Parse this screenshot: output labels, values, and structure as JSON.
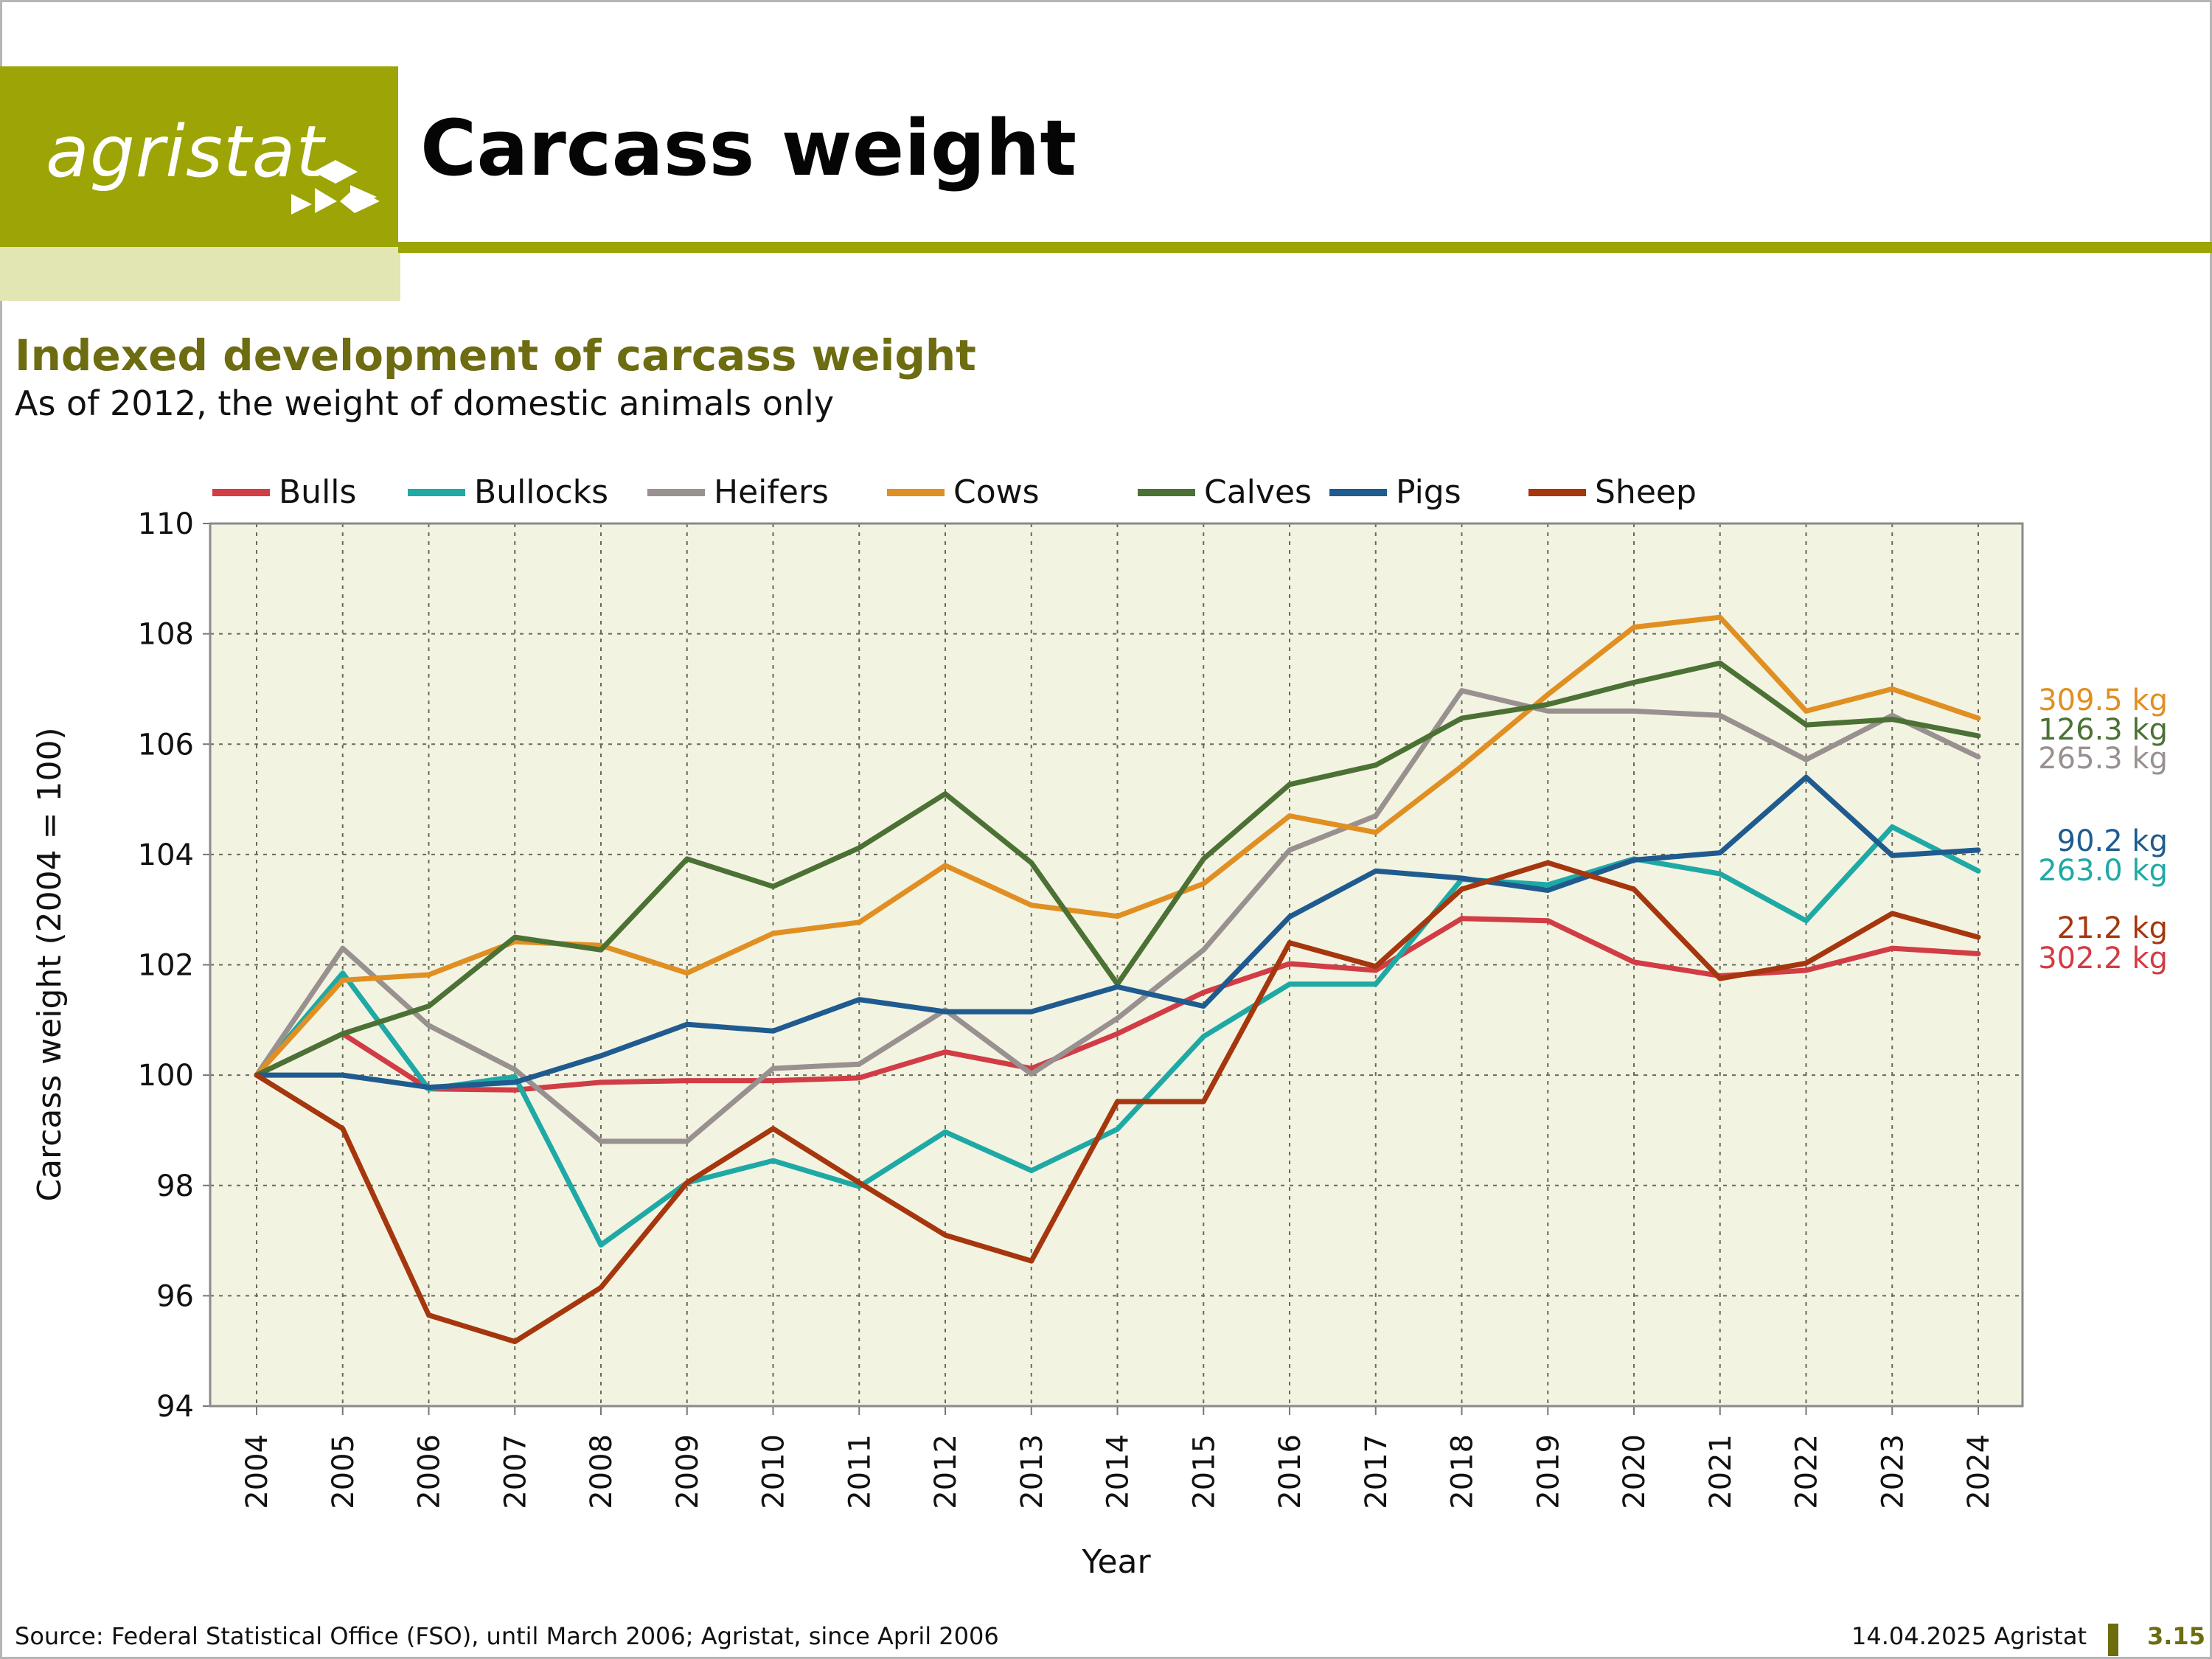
{
  "header": {
    "logo_text": "agristat",
    "title": "Carcass weight"
  },
  "subtitle": "Indexed development of carcass weight",
  "description": "As of 2012, the weight of domestic animals only",
  "colors": {
    "brand": "#9ca406",
    "brand_light": "#e1e6b2",
    "brand_dark": "#6d6c10",
    "plot_bg": "#f3f3e2"
  },
  "chart_data": {
    "type": "line",
    "xlabel": "Year",
    "ylabel": "Carcass weight (2004 = 100)",
    "ylim": [
      94,
      110
    ],
    "yticks": [
      94,
      96,
      98,
      100,
      102,
      104,
      106,
      108,
      110
    ],
    "grid": true,
    "legend_position": "top",
    "x": [
      "2004",
      "2005",
      "2006",
      "2007",
      "2008",
      "2009",
      "2010",
      "2011",
      "2012",
      "2013",
      "2014",
      "2015",
      "2016",
      "2017",
      "2018",
      "2019",
      "2020",
      "2021",
      "2022",
      "2023",
      "2024"
    ],
    "series": [
      {
        "name": "Bulls",
        "color": "#d13c45",
        "end_label": "302.2 kg",
        "values": [
          100,
          100.75,
          99.75,
          99.73,
          99.87,
          99.9,
          99.9,
          99.95,
          100.42,
          100.12,
          100.75,
          101.5,
          102.02,
          101.9,
          102.84,
          102.8,
          102.05,
          101.8,
          101.9,
          102.3,
          102.2
        ]
      },
      {
        "name": "Bullocks",
        "color": "#1fa9a5",
        "end_label": "263.0 kg",
        "values": [
          100,
          101.85,
          99.75,
          99.97,
          96.92,
          98.05,
          98.45,
          97.98,
          98.97,
          98.27,
          99.02,
          100.7,
          101.65,
          101.65,
          103.55,
          103.45,
          103.92,
          103.65,
          102.8,
          104.5,
          103.7
        ]
      },
      {
        "name": "Heifers",
        "color": "#999090",
        "end_label": "265.3 kg",
        "values": [
          100,
          102.3,
          100.9,
          100.1,
          98.8,
          98.8,
          100.12,
          100.2,
          101.18,
          100.02,
          101.03,
          102.27,
          104.08,
          104.7,
          106.97,
          106.6,
          106.6,
          106.52,
          105.72,
          106.52,
          105.77
        ]
      },
      {
        "name": "Cows",
        "color": "#e08f22",
        "end_label": "309.5 kg",
        "values": [
          100,
          101.72,
          101.82,
          102.42,
          102.35,
          101.85,
          102.57,
          102.77,
          103.8,
          103.08,
          102.88,
          103.47,
          104.7,
          104.4,
          105.6,
          106.9,
          108.12,
          108.3,
          106.6,
          107.0,
          106.47
        ]
      },
      {
        "name": "Calves",
        "color": "#4b7134",
        "end_label": "126.3 kg",
        "values": [
          100,
          100.75,
          101.25,
          102.5,
          102.27,
          103.92,
          103.42,
          104.12,
          105.1,
          103.85,
          101.65,
          103.92,
          105.27,
          105.62,
          106.47,
          106.72,
          107.12,
          107.47,
          106.35,
          106.45,
          106.15
        ]
      },
      {
        "name": "Pigs",
        "color": "#1f5b8f",
        "end_label": "90.2 kg",
        "values": [
          100,
          100.0,
          99.78,
          99.87,
          100.35,
          100.92,
          100.8,
          101.37,
          101.15,
          101.15,
          101.6,
          101.25,
          102.87,
          103.7,
          103.57,
          103.35,
          103.9,
          104.03,
          105.4,
          103.98,
          104.08
        ]
      },
      {
        "name": "Sheep",
        "color": "#a5360d",
        "end_label": "21.2 kg",
        "values": [
          100,
          99.03,
          95.65,
          95.17,
          96.15,
          98.05,
          99.03,
          98.05,
          97.1,
          96.63,
          99.52,
          99.52,
          102.4,
          101.97,
          103.37,
          103.85,
          103.37,
          101.75,
          102.03,
          102.93,
          102.5
        ]
      }
    ]
  },
  "footer": {
    "source": "Source: Federal Statistical Office (FSO), until March 2006; Agristat, since April 2006",
    "date": "14.04.2025 Agristat",
    "page": "3.15"
  }
}
